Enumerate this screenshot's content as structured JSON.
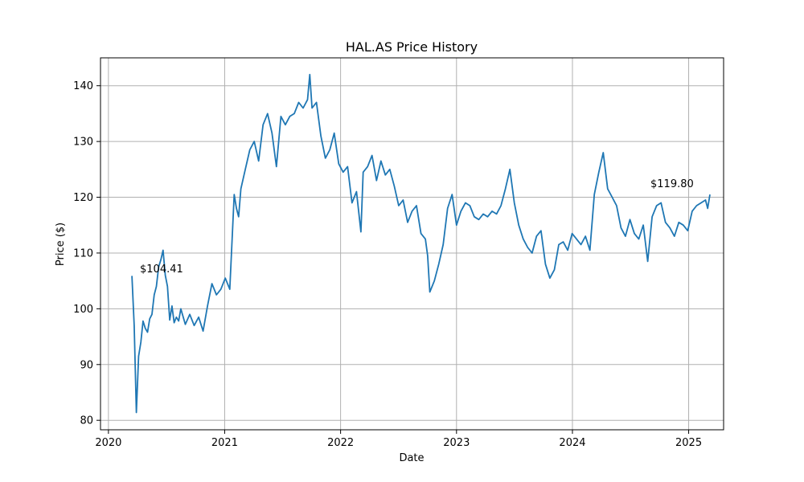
{
  "chart_data": {
    "type": "line",
    "title": "HAL.AS Price History",
    "xlabel": "Date",
    "ylabel": "Price ($)",
    "xlim": [
      "2019-12-07",
      "2025-04-21"
    ],
    "ylim": [
      78.3,
      145.0
    ],
    "grid": true,
    "series_color": "#1f77b4",
    "x_ticks": [
      "2020-01-01",
      "2021-01-01",
      "2022-01-01",
      "2023-01-01",
      "2024-01-01",
      "2025-01-01"
    ],
    "x_tick_labels": [
      "2020",
      "2021",
      "2022",
      "2023",
      "2024",
      "2025"
    ],
    "y_ticks": [
      80,
      90,
      100,
      110,
      120,
      130,
      140
    ],
    "y_tick_labels": [
      "80",
      "90",
      "100",
      "110",
      "120",
      "130",
      "140"
    ],
    "series": [
      {
        "x": [
          "2020-03-15",
          "2020-03-22",
          "2020-03-29",
          "2020-04-05",
          "2020-04-12",
          "2020-04-19",
          "2020-04-26",
          "2020-05-03",
          "2020-05-10",
          "2020-05-17",
          "2020-05-24",
          "2020-05-31",
          "2020-06-07",
          "2020-06-14",
          "2020-06-21",
          "2020-06-28",
          "2020-07-05",
          "2020-07-12",
          "2020-07-19",
          "2020-07-26",
          "2020-08-02",
          "2020-08-09",
          "2020-08-16",
          "2020-08-23",
          "2020-08-30",
          "2020-09-13",
          "2020-09-27",
          "2020-10-11",
          "2020-10-25",
          "2020-11-08",
          "2020-11-22",
          "2020-12-06",
          "2020-12-20",
          "2021-01-03",
          "2021-01-17",
          "2021-01-31",
          "2021-02-07",
          "2021-02-14",
          "2021-02-21",
          "2021-03-07",
          "2021-03-21",
          "2021-04-04",
          "2021-04-18",
          "2021-05-02",
          "2021-05-16",
          "2021-05-30",
          "2021-06-13",
          "2021-06-27",
          "2021-07-11",
          "2021-07-25",
          "2021-08-08",
          "2021-08-22",
          "2021-09-05",
          "2021-09-19",
          "2021-09-26",
          "2021-10-03",
          "2021-10-17",
          "2021-10-31",
          "2021-11-14",
          "2021-11-28",
          "2021-12-12",
          "2021-12-26",
          "2022-01-09",
          "2022-01-23",
          "2022-02-06",
          "2022-02-20",
          "2022-03-06",
          "2022-03-13",
          "2022-03-27",
          "2022-04-10",
          "2022-04-24",
          "2022-05-08",
          "2022-05-22",
          "2022-06-05",
          "2022-06-19",
          "2022-07-03",
          "2022-07-17",
          "2022-07-31",
          "2022-08-14",
          "2022-08-28",
          "2022-09-11",
          "2022-09-25",
          "2022-10-02",
          "2022-10-09",
          "2022-10-23",
          "2022-11-06",
          "2022-11-20",
          "2022-12-04",
          "2022-12-18",
          "2023-01-01",
          "2023-01-15",
          "2023-01-29",
          "2023-02-12",
          "2023-02-26",
          "2023-03-12",
          "2023-03-26",
          "2023-04-09",
          "2023-04-23",
          "2023-05-07",
          "2023-05-21",
          "2023-06-04",
          "2023-06-18",
          "2023-07-02",
          "2023-07-16",
          "2023-07-30",
          "2023-08-13",
          "2023-08-27",
          "2023-09-10",
          "2023-09-24",
          "2023-10-08",
          "2023-10-22",
          "2023-11-05",
          "2023-11-19",
          "2023-12-03",
          "2023-12-17",
          "2023-12-31",
          "2024-01-14",
          "2024-01-28",
          "2024-02-11",
          "2024-02-25",
          "2024-03-10",
          "2024-03-24",
          "2024-04-07",
          "2024-04-21",
          "2024-05-05",
          "2024-05-19",
          "2024-06-02",
          "2024-06-16",
          "2024-06-30",
          "2024-07-14",
          "2024-07-28",
          "2024-08-11",
          "2024-08-25",
          "2024-09-08",
          "2024-09-22",
          "2024-10-06",
          "2024-10-20",
          "2024-11-03",
          "2024-11-17",
          "2024-12-01",
          "2024-12-15",
          "2024-12-29",
          "2025-01-12",
          "2025-01-26",
          "2025-02-09",
          "2025-02-23",
          "2025-03-02",
          "2025-03-09"
        ],
        "values": [
          105.9,
          97.0,
          81.4,
          91.5,
          94.0,
          97.8,
          96.5,
          95.8,
          98.2,
          99.0,
          102.5,
          104.0,
          107.5,
          108.8,
          110.5,
          106.0,
          104.0,
          98.0,
          100.5,
          97.5,
          98.5,
          97.8,
          100.0,
          98.6,
          97.2,
          99.0,
          97.0,
          98.5,
          96.0,
          100.5,
          104.5,
          102.5,
          103.5,
          105.5,
          103.5,
          120.5,
          118.0,
          116.5,
          121.5,
          125.0,
          128.5,
          130.0,
          126.5,
          133.0,
          135.0,
          131.5,
          125.5,
          134.5,
          133.0,
          134.5,
          135.0,
          137.0,
          136.0,
          137.5,
          142.0,
          136.0,
          137.0,
          131.0,
          127.0,
          128.5,
          131.5,
          126.0,
          124.5,
          125.5,
          119.0,
          121.0,
          113.8,
          124.5,
          125.5,
          127.5,
          123.0,
          126.5,
          124.0,
          125.0,
          122.0,
          118.5,
          119.5,
          115.5,
          117.5,
          118.5,
          113.5,
          112.5,
          109.5,
          103.0,
          105.0,
          108.0,
          111.5,
          118.0,
          120.5,
          115.0,
          117.5,
          119.0,
          118.5,
          116.5,
          116.0,
          117.0,
          116.5,
          117.5,
          117.0,
          118.5,
          121.5,
          125.0,
          119.0,
          115.0,
          112.5,
          111.0,
          110.0,
          113.0,
          114.0,
          108.0,
          105.5,
          107.0,
          111.5,
          112.0,
          110.5,
          113.5,
          112.5,
          111.5,
          113.0,
          110.5,
          120.5,
          124.5,
          128.0,
          121.5,
          120.0,
          118.5,
          114.5,
          113.0,
          116.0,
          113.5,
          112.5,
          115.0,
          108.5,
          116.5,
          118.5,
          119.0,
          115.5,
          114.5,
          113.0,
          115.5,
          115.0,
          114.0,
          117.5,
          118.5,
          119.0,
          119.5,
          118.0,
          120.5
        ]
      }
    ],
    "annotations": [
      {
        "text": "$104.41"
      },
      {
        "text": "$119.80"
      }
    ]
  }
}
